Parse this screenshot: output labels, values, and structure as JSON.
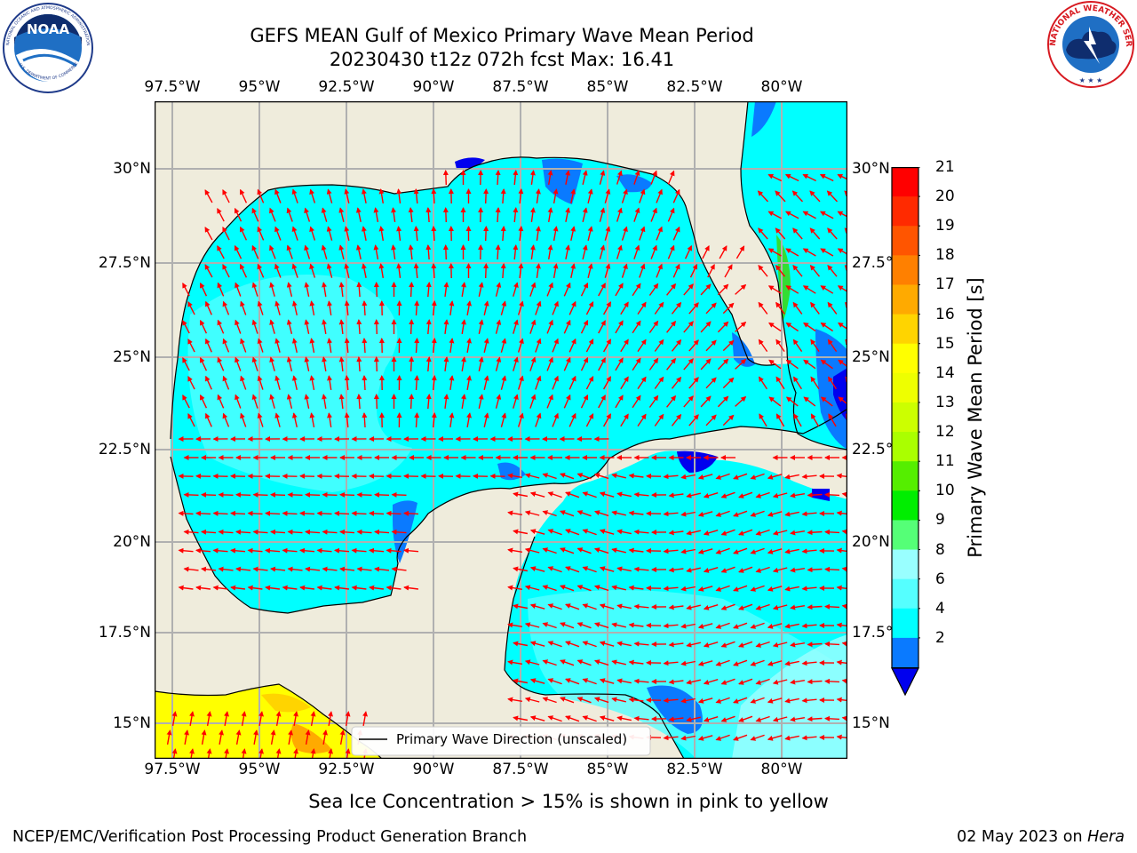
{
  "header": {
    "title_line1": "GEFS MEAN Gulf of Mexico Primary Wave Mean Period",
    "title_line2": "20230430 t12z 072h fcst   Max: 16.41"
  },
  "logos": {
    "left": {
      "text": "NOAA",
      "ring_text": "NATIONAL OCEANIC AND ATMOSPHERIC ADMINISTRATION · U.S. DEPARTMENT OF COMMERCE"
    },
    "right": {
      "ring_text": "NATIONAL WEATHER SERVICE"
    }
  },
  "map": {
    "lon_labels": [
      "97.5°W",
      "95°W",
      "92.5°W",
      "90°W",
      "87.5°W",
      "85°W",
      "82.5°W",
      "80°W"
    ],
    "lat_labels": [
      "30°N",
      "27.5°N",
      "25°N",
      "22.5°N",
      "20°N",
      "17.5°N",
      "15°N"
    ],
    "legend_label": "Primary Wave Direction (unscaled)",
    "colors": {
      "land": "#efecdc",
      "sea_main": "#00ffff",
      "sea_light": "#55ffff",
      "sea_pale": "#99ffff",
      "shallow": "#0a7aff",
      "deep": "#0000ee",
      "arrow": "#ff0000"
    }
  },
  "colorbar": {
    "ticks": [
      "21",
      "20",
      "19",
      "18",
      "17",
      "16",
      "15",
      "14",
      "13",
      "12",
      "11",
      "10",
      "9",
      "8",
      "6",
      "4",
      "2"
    ],
    "label": "Primary Wave Mean Period [s]",
    "colors": [
      "#ff0000",
      "#ff2a00",
      "#ff5500",
      "#ff8000",
      "#ffaa00",
      "#ffd400",
      "#ffff00",
      "#eeff00",
      "#ccff00",
      "#aaff00",
      "#55ee00",
      "#00ee00",
      "#55ff77",
      "#99ffff",
      "#55ffff",
      "#00ffff",
      "#0a7aff",
      "#0000ee"
    ]
  },
  "footer": {
    "subtitle": "Sea Ice Concentration > 15% is shown in pink to yellow",
    "left": "NCEP/EMC/Verification Post Processing Product Generation Branch",
    "right_text": "02 May 2023 on ",
    "right_machine": "Hera"
  }
}
